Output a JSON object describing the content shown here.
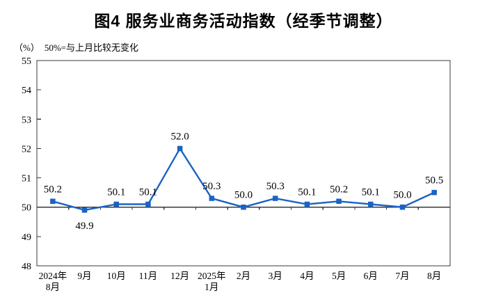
{
  "chart_data": {
    "type": "line",
    "title": "图4 服务业商务活动指数（经季节调整）",
    "unit_label": "（%）",
    "note": "50%=与上月比较无变化",
    "categories": [
      [
        "2024年",
        "8月"
      ],
      [
        "9月"
      ],
      [
        "10月"
      ],
      [
        "11月"
      ],
      [
        "12月"
      ],
      [
        "2025年",
        "1月"
      ],
      [
        "2月"
      ],
      [
        "3月"
      ],
      [
        "4月"
      ],
      [
        "5月"
      ],
      [
        "6月"
      ],
      [
        "7月"
      ],
      [
        "8月"
      ]
    ],
    "series": [
      {
        "name": "服务业商务活动指数",
        "values": [
          50.2,
          49.9,
          50.1,
          50.1,
          52.0,
          50.3,
          50.0,
          50.3,
          50.1,
          50.2,
          50.1,
          50.0,
          50.5
        ],
        "data_labels": [
          "50.2",
          "49.9",
          "50.1",
          "50.1",
          "52.0",
          "50.3",
          "50.0",
          "50.3",
          "50.1",
          "50.2",
          "50.1",
          "50.0",
          "50.5"
        ],
        "labels_below_indices": [
          1
        ]
      }
    ],
    "ylim": [
      48,
      55
    ],
    "yticks": [
      48,
      49,
      50,
      51,
      52,
      53,
      54,
      55
    ],
    "baseline_value": 50,
    "grid": false,
    "legend_position": "none",
    "colors": {
      "line": "#1a63c6",
      "marker": "#1a63c6",
      "axis": "#3a3a3a",
      "text": "#000000"
    }
  }
}
